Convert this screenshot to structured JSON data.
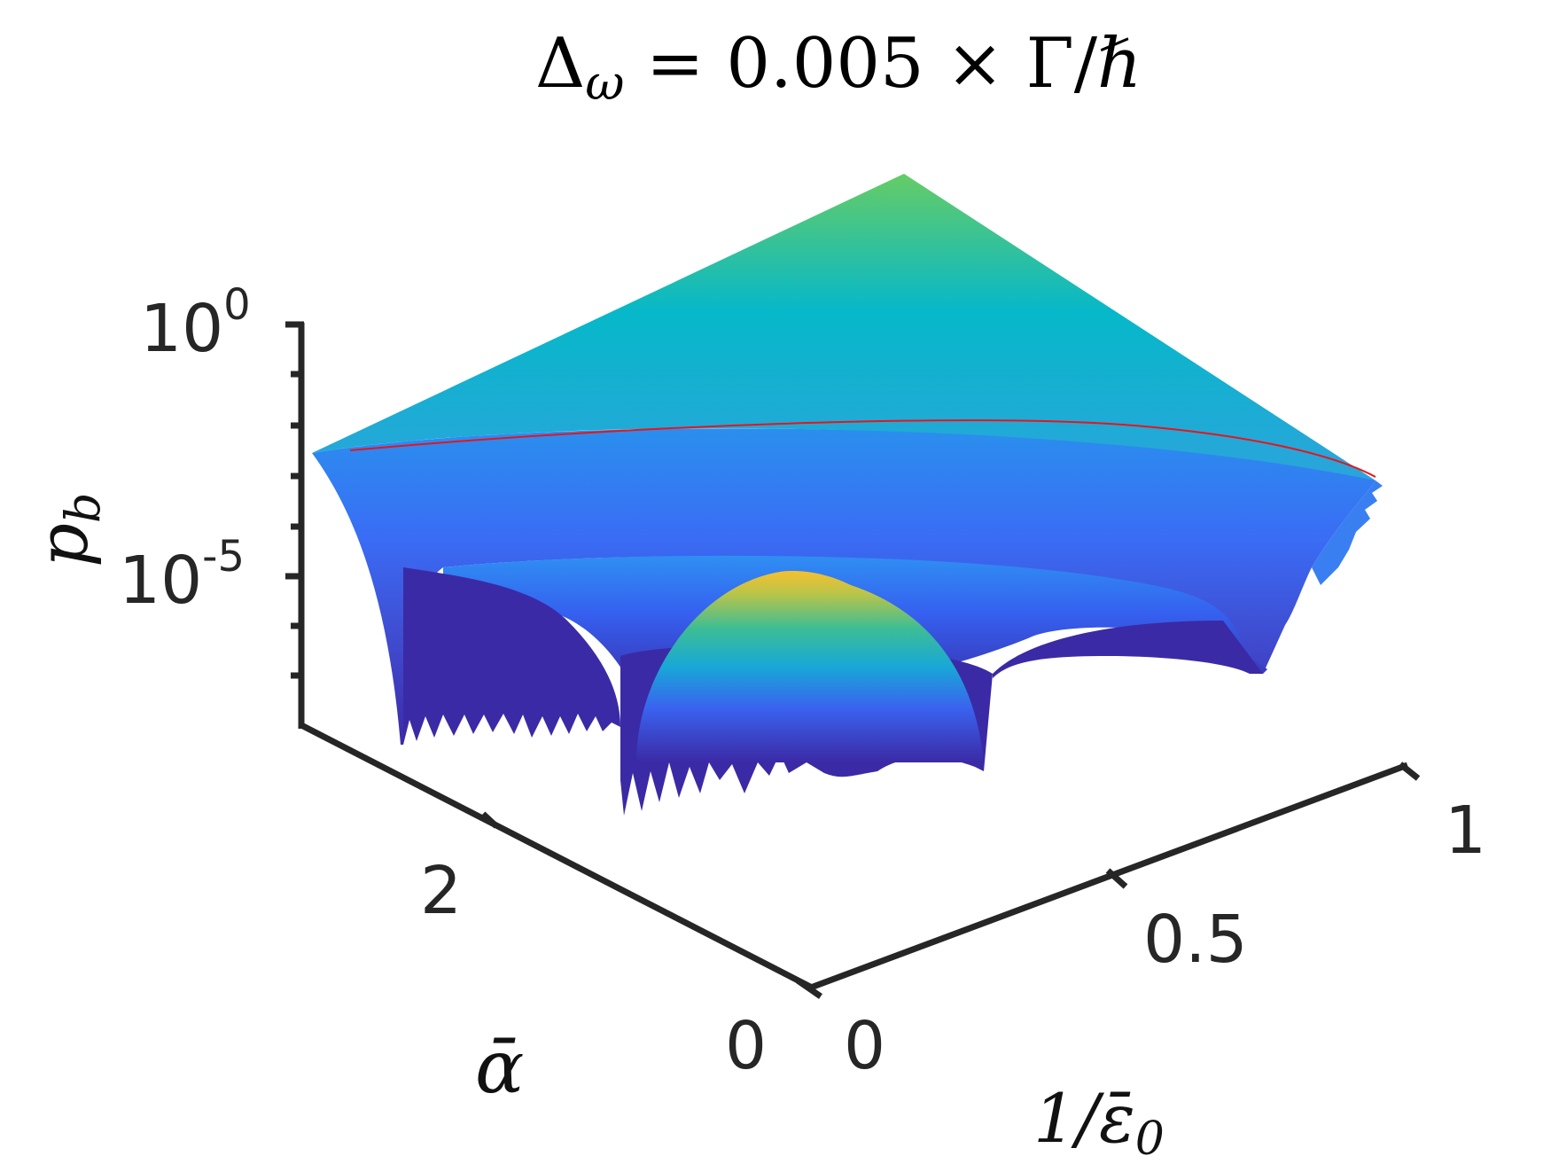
{
  "chart_data": {
    "type": "surface",
    "title_main": "Δ",
    "title_sub": "ω",
    "title_rest": " = 0.005 × Γ/ℏ",
    "xlabel": "1/ε̄",
    "xlabel_sub": "0",
    "ylabel": "ᾱ",
    "zlabel": "p",
    "zlabel_sub": "b",
    "z_scale": "log",
    "zlim_exponents": [
      -9,
      0
    ],
    "x_ticks": [
      "0",
      "0.5",
      "1"
    ],
    "y_ticks": [
      "0",
      "2"
    ],
    "z_ticks": [
      {
        "base": "10",
        "exp": "0"
      },
      {
        "base": "10",
        "exp": "-5"
      }
    ],
    "colormap": "parula",
    "colors": {
      "surface_high": "#f9c92a",
      "surface_mid": "#06b6cc",
      "surface_low": "#3b2ba8",
      "highlight_line": "#e8141c",
      "axis": "#262626"
    }
  }
}
